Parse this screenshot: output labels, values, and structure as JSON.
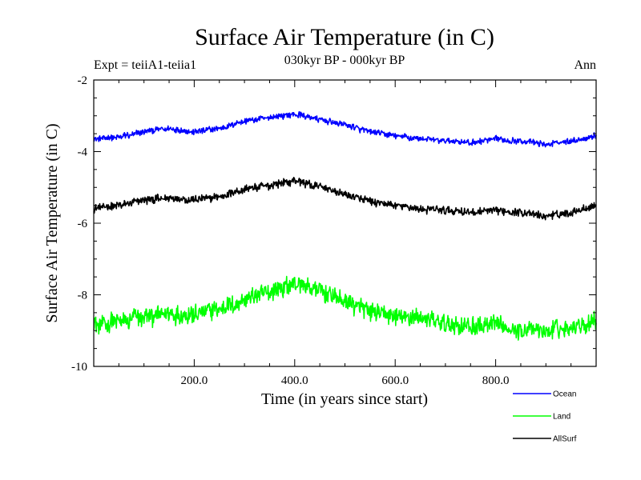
{
  "chart_data": {
    "type": "line",
    "title": "Surface Air Temperature (in C)",
    "subtitle": "030kyr BP - 000kyr BP",
    "left_label": "Expt = teiiA1-teiia1",
    "right_label": "Ann",
    "xlabel": "Time (in years since start)",
    "ylabel": "Surface Air Temperature (in C)",
    "xlim": [
      0,
      1000
    ],
    "ylim": [
      -10,
      -2
    ],
    "xticks": [
      {
        "value": 200,
        "label": "200.0"
      },
      {
        "value": 400,
        "label": "400.0"
      },
      {
        "value": 600,
        "label": "600.0"
      },
      {
        "value": 800,
        "label": "800.0"
      }
    ],
    "yticks": [
      {
        "value": -2,
        "label": "-2"
      },
      {
        "value": -4,
        "label": "-4"
      },
      {
        "value": -6,
        "label": "-6"
      },
      {
        "value": -8,
        "label": "-8"
      },
      {
        "value": -10,
        "label": "-10"
      }
    ],
    "grid": false,
    "legend_position": "bottom-right",
    "series": [
      {
        "name": "Ocean",
        "color": "#0000ff",
        "noise": 0.09,
        "x": [
          0,
          50,
          100,
          150,
          200,
          250,
          300,
          350,
          400,
          450,
          500,
          550,
          600,
          650,
          700,
          750,
          800,
          850,
          900,
          950,
          1000
        ],
        "values": [
          -3.65,
          -3.6,
          -3.45,
          -3.35,
          -3.45,
          -3.35,
          -3.15,
          -3.05,
          -2.95,
          -3.1,
          -3.25,
          -3.45,
          -3.55,
          -3.65,
          -3.7,
          -3.75,
          -3.65,
          -3.7,
          -3.8,
          -3.7,
          -3.55
        ]
      },
      {
        "name": "Land",
        "color": "#00ff00",
        "noise": 0.28,
        "x": [
          0,
          50,
          100,
          150,
          200,
          250,
          300,
          350,
          400,
          450,
          500,
          550,
          600,
          650,
          700,
          750,
          800,
          850,
          900,
          950,
          1000
        ],
        "values": [
          -8.8,
          -8.75,
          -8.6,
          -8.55,
          -8.55,
          -8.4,
          -8.15,
          -7.9,
          -7.65,
          -7.9,
          -8.2,
          -8.45,
          -8.6,
          -8.65,
          -8.8,
          -8.9,
          -8.85,
          -8.95,
          -9.0,
          -8.9,
          -8.7
        ]
      },
      {
        "name": "AllSurf",
        "color": "#000000",
        "noise": 0.12,
        "x": [
          0,
          50,
          100,
          150,
          200,
          250,
          300,
          350,
          400,
          450,
          500,
          550,
          600,
          650,
          700,
          750,
          800,
          850,
          900,
          950,
          1000
        ],
        "values": [
          -5.6,
          -5.5,
          -5.35,
          -5.3,
          -5.35,
          -5.25,
          -5.05,
          -4.95,
          -4.8,
          -5.0,
          -5.2,
          -5.4,
          -5.5,
          -5.6,
          -5.65,
          -5.7,
          -5.65,
          -5.7,
          -5.8,
          -5.7,
          -5.5
        ]
      }
    ]
  }
}
